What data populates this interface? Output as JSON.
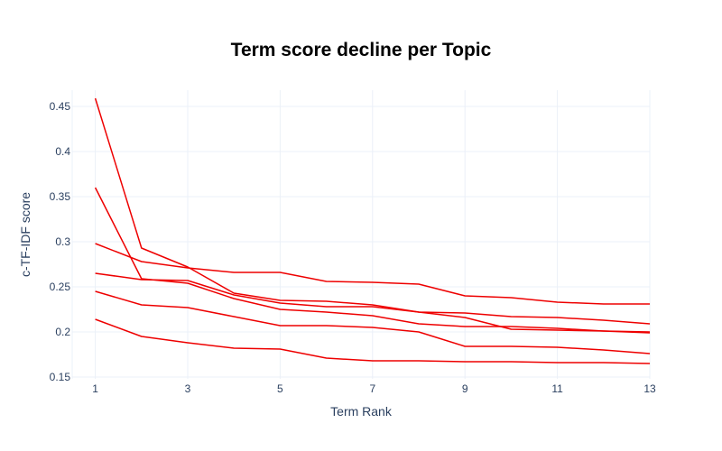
{
  "chart_data": {
    "type": "line",
    "title": "Term score decline per Topic",
    "xlabel": "Term Rank",
    "ylabel": "c-TF-IDF score",
    "x": [
      1,
      2,
      3,
      4,
      5,
      6,
      7,
      8,
      9,
      10,
      11,
      12,
      13
    ],
    "xlim": [
      0.5,
      13
    ],
    "ylim": [
      0.148,
      0.468
    ],
    "xticks": [
      1,
      3,
      5,
      7,
      9,
      11,
      13
    ],
    "yticks": [
      0.15,
      0.2,
      0.25,
      0.3,
      0.35,
      0.4,
      0.45
    ],
    "ytick_labels": [
      "0.15",
      "0.2",
      "0.25",
      "0.3",
      "0.35",
      "0.4",
      "0.45"
    ],
    "grid": true,
    "line_color": "#ee0000",
    "series": [
      {
        "values": [
          0.459,
          0.293,
          0.272,
          0.243,
          0.235,
          0.234,
          0.23,
          0.222,
          0.216,
          0.203,
          0.202,
          0.201,
          0.2
        ]
      },
      {
        "values": [
          0.36,
          0.259,
          0.254,
          0.237,
          0.225,
          0.222,
          0.218,
          0.209,
          0.206,
          0.206,
          0.204,
          0.201,
          0.199
        ]
      },
      {
        "values": [
          0.298,
          0.278,
          0.271,
          0.266,
          0.266,
          0.256,
          0.255,
          0.253,
          0.24,
          0.238,
          0.233,
          0.231,
          0.231
        ]
      },
      {
        "values": [
          0.265,
          0.258,
          0.257,
          0.241,
          0.232,
          0.228,
          0.228,
          0.222,
          0.221,
          0.217,
          0.216,
          0.213,
          0.209
        ]
      },
      {
        "values": [
          0.245,
          0.23,
          0.227,
          0.217,
          0.207,
          0.207,
          0.205,
          0.2,
          0.184,
          0.184,
          0.183,
          0.18,
          0.176
        ]
      },
      {
        "values": [
          0.214,
          0.195,
          0.188,
          0.182,
          0.181,
          0.171,
          0.168,
          0.168,
          0.167,
          0.167,
          0.166,
          0.166,
          0.165
        ]
      }
    ]
  }
}
